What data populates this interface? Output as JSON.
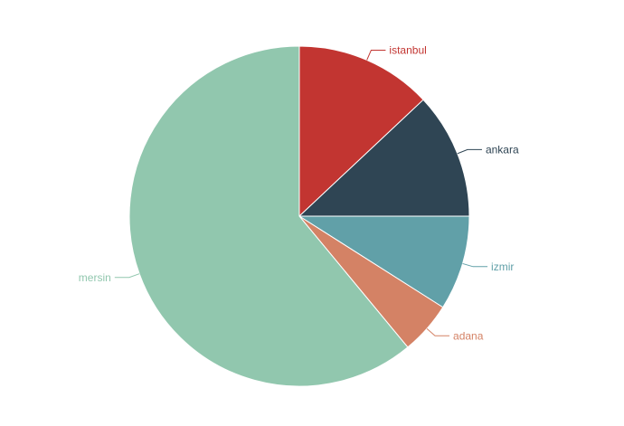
{
  "chart_data": {
    "type": "pie",
    "title": "",
    "legend": "none",
    "series": [
      {
        "slices": [
          {
            "label": "istanbul",
            "value": 13,
            "color": "#c23531"
          },
          {
            "label": "ankara",
            "value": 12,
            "color": "#2f4554"
          },
          {
            "label": "izmir",
            "value": 9,
            "color": "#61a0a8"
          },
          {
            "label": "adana",
            "value": 5,
            "color": "#d48265"
          },
          {
            "label": "mersin",
            "value": 61,
            "color": "#91c7ae"
          }
        ]
      }
    ]
  }
}
